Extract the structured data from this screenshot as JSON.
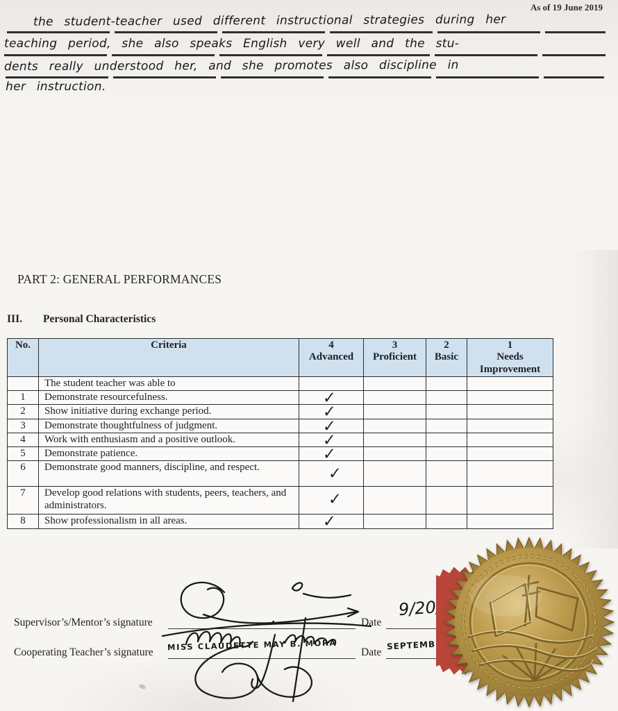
{
  "page": {
    "as_of": "As of 19 June 2019"
  },
  "handwritten_note": {
    "lines": [
      "the student-teacher used different instructional strategies during her",
      "teaching period, she also speaks English very well and the stu-",
      "dents really understood her, and she promotes also discipline in",
      "her instruction."
    ]
  },
  "part2": {
    "title": "PART 2: GENERAL PERFORMANCES",
    "section_number": "III.",
    "section_title": "Personal Characteristics"
  },
  "table": {
    "col_no": "No.",
    "col_criteria": "Criteria",
    "rating_columns": [
      {
        "score": "4",
        "label": "Advanced"
      },
      {
        "score": "3",
        "label": "Proficient"
      },
      {
        "score": "2",
        "label": "Basic"
      },
      {
        "score": "1",
        "label": "Needs Improvement"
      }
    ],
    "checkmark": "✓",
    "header_bg": "#cfe1ef",
    "rows": [
      {
        "no": "",
        "criteria": "The student teacher was able to",
        "rating": ""
      },
      {
        "no": "1",
        "criteria": "Demonstrate resourcefulness.",
        "rating": "4"
      },
      {
        "no": "2",
        "criteria": "Show initiative during exchange period.",
        "rating": "4"
      },
      {
        "no": "3",
        "criteria": "Demonstrate thoughtfulness of judgment.",
        "rating": "4"
      },
      {
        "no": "4",
        "criteria": "Work with enthusiasm and a positive outlook.",
        "rating": "4"
      },
      {
        "no": "5",
        "criteria": "Demonstrate patience.",
        "rating": "4"
      },
      {
        "no": "6",
        "criteria": "Demonstrate good manners, discipline, and respect.",
        "rating": "4"
      },
      {
        "no": "7",
        "criteria": "Develop good relations with students, peers, teachers, and administrators.",
        "rating": "4"
      },
      {
        "no": "8",
        "criteria": "Show professionalism in all areas.",
        "rating": "4"
      }
    ]
  },
  "signatures": {
    "supervisor_label": "Supervisor’s/Mentor’s signature",
    "supervisor_date_label": "Date",
    "supervisor_date_value": "9/20/",
    "cooperating_label": "Cooperating Teacher’s signature",
    "cooperating_name": "MISS CLAUDETTE MAY B. MORA",
    "cooperating_date_label": "Date",
    "cooperating_date_value": "SEPTEMBER"
  },
  "seal": {
    "type": "gold-foil-embossed-notary-seal",
    "gold_color": "#b3923f",
    "red_accent_color": "#b8453a"
  }
}
